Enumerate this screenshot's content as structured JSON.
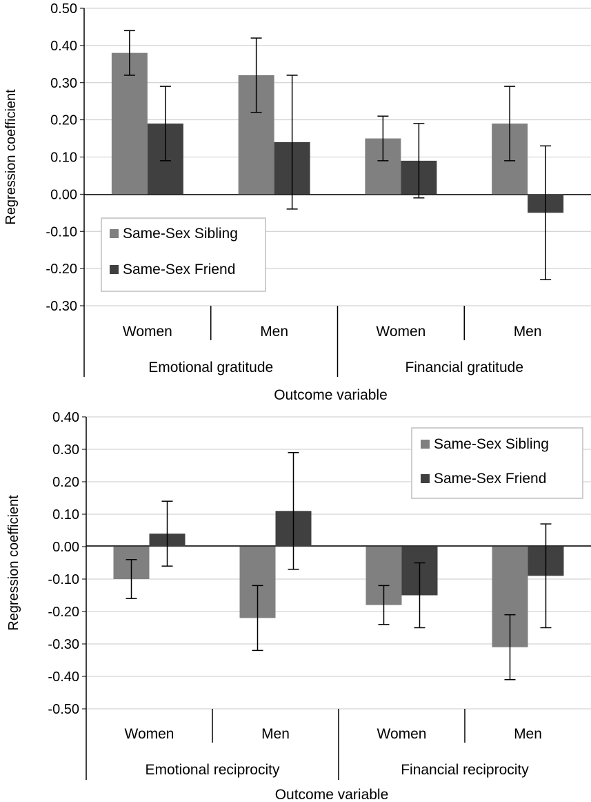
{
  "chart_data": [
    {
      "type": "bar",
      "title": "",
      "xlabel": "Outcome variable",
      "ylabel": "Regression coefficient",
      "ylim": [
        -0.3,
        0.5
      ],
      "yticks": [
        "0.50",
        "0.40",
        "0.30",
        "0.20",
        "0.10",
        "0.00",
        "-0.10",
        "-0.20",
        "-0.30"
      ],
      "grid": true,
      "legend_position": "bottom-left",
      "groups": [
        "Emotional gratitude",
        "Financial gratitude"
      ],
      "categories": [
        "Women",
        "Men",
        "Women",
        "Men"
      ],
      "series": [
        {
          "name": "Same-Sex Sibling",
          "color": "#808080",
          "values": [
            0.38,
            0.32,
            0.15,
            0.19
          ],
          "err_low": [
            0.32,
            0.22,
            0.09,
            0.09
          ],
          "err_high": [
            0.44,
            0.42,
            0.21,
            0.29
          ]
        },
        {
          "name": "Same-Sex Friend",
          "color": "#404040",
          "values": [
            0.19,
            0.14,
            0.09,
            -0.05
          ],
          "err_low": [
            0.09,
            -0.04,
            -0.01,
            -0.23
          ],
          "err_high": [
            0.29,
            0.32,
            0.19,
            0.13
          ]
        }
      ]
    },
    {
      "type": "bar",
      "title": "",
      "xlabel": "Outcome variable",
      "ylabel": "Regression coefficient",
      "ylim": [
        -0.5,
        0.4
      ],
      "yticks": [
        "0.40",
        "0.30",
        "0.20",
        "0.10",
        "0.00",
        "-0.10",
        "-0.20",
        "-0.30",
        "-0.40",
        "-0.50"
      ],
      "grid": true,
      "legend_position": "top-right",
      "groups": [
        "Emotional reciprocity",
        "Financial reciprocity"
      ],
      "categories": [
        "Women",
        "Men",
        "Women",
        "Men"
      ],
      "series": [
        {
          "name": "Same-Sex Sibling",
          "color": "#808080",
          "values": [
            -0.1,
            -0.22,
            -0.18,
            -0.31
          ],
          "err_low": [
            -0.16,
            -0.32,
            -0.24,
            -0.41
          ],
          "err_high": [
            -0.04,
            -0.12,
            -0.12,
            -0.21
          ]
        },
        {
          "name": "Same-Sex Friend",
          "color": "#404040",
          "values": [
            0.04,
            0.11,
            -0.15,
            -0.09
          ],
          "err_low": [
            -0.06,
            -0.07,
            -0.25,
            -0.25
          ],
          "err_high": [
            0.14,
            0.29,
            -0.05,
            0.07
          ]
        }
      ]
    }
  ]
}
